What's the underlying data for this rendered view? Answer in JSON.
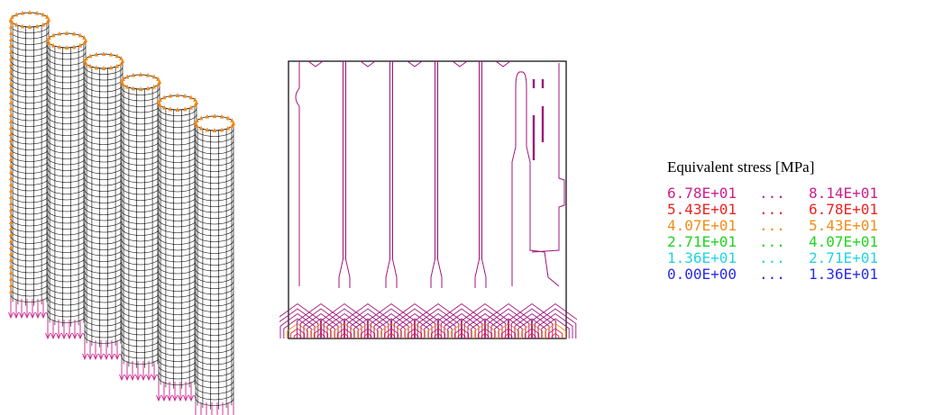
{
  "legend": {
    "title": "Equivalent stress [MPa]",
    "rows": [
      {
        "min": "6.78E+01",
        "sep": "...",
        "max": "8.14E+01",
        "color": "#cc1f8a"
      },
      {
        "min": "5.43E+01",
        "sep": "...",
        "max": "6.78E+01",
        "color": "#ee2222"
      },
      {
        "min": "4.07E+01",
        "sep": "...",
        "max": "5.43E+01",
        "color": "#f28c1a"
      },
      {
        "min": "2.71E+01",
        "sep": "...",
        "max": "4.07E+01",
        "color": "#22d422"
      },
      {
        "min": "1.36E+01",
        "sep": "...",
        "max": "2.71E+01",
        "color": "#22d4e0"
      },
      {
        "min": "0.00E+00",
        "sep": "...",
        "max": "1.36E+01",
        "color": "#2a2aee"
      }
    ]
  },
  "colors": {
    "mesh": "#000000",
    "top_load_arrows": "#f28c1a",
    "bottom_load_arrows": "#cc1f8a",
    "contour_main": "#a0147a",
    "contour_high": "#ee2222",
    "contour_mid": "#f28c1a"
  },
  "model": {
    "cylinder_count": 6
  }
}
